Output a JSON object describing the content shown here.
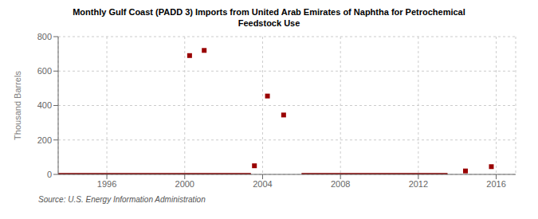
{
  "chart_data": {
    "type": "scatter",
    "title": "Monthly Gulf Coast (PADD 3) Imports from United Arab Emirates of Naphtha for Petrochemical\nFeedstock Use",
    "ylabel": "Thousand Barrels",
    "annotation": "Source: U.S. Energy Information Administration",
    "xlim": [
      1993.5,
      2017.0
    ],
    "ylim": [
      0,
      800
    ],
    "xticks": [
      1996,
      2000,
      2004,
      2008,
      2012,
      2016
    ],
    "yticks": [
      0,
      200,
      400,
      600,
      800
    ],
    "grid": true,
    "series": [
      {
        "type": "line",
        "color": "#880000",
        "x": [
          1993.5,
          2003.4,
          null,
          2006.0,
          2013.5
        ],
        "values": [
          0,
          0,
          null,
          0,
          0
        ]
      },
      {
        "type": "scatter",
        "color": "#990000",
        "marker": "square",
        "x": [
          2000.25,
          2001.0,
          2003.58,
          2004.25,
          2005.08,
          2014.42,
          2015.75
        ],
        "values": [
          690,
          720,
          50,
          455,
          345,
          20,
          45
        ]
      }
    ]
  }
}
